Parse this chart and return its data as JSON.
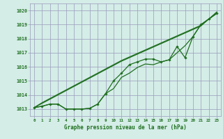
{
  "x": [
    0,
    1,
    2,
    3,
    4,
    5,
    6,
    7,
    8,
    9,
    10,
    11,
    12,
    13,
    14,
    15,
    16,
    17,
    18,
    19,
    20,
    21,
    22,
    23
  ],
  "line_straight": [
    1013.1,
    1013.4,
    1013.7,
    1014.0,
    1014.3,
    1014.6,
    1014.9,
    1015.2,
    1015.5,
    1015.8,
    1016.1,
    1016.4,
    1016.65,
    1016.9,
    1017.15,
    1017.4,
    1017.65,
    1017.9,
    1018.15,
    1018.4,
    1018.65,
    1018.9,
    1019.4,
    1019.8
  ],
  "line_straight2": [
    1013.1,
    1013.45,
    1013.75,
    1014.05,
    1014.35,
    1014.65,
    1014.95,
    1015.25,
    1015.55,
    1015.85,
    1016.15,
    1016.45,
    1016.7,
    1016.95,
    1017.2,
    1017.45,
    1017.7,
    1017.95,
    1018.2,
    1018.45,
    1018.7,
    1018.95,
    1019.4,
    1019.9
  ],
  "line_markers": [
    1013.1,
    1013.2,
    1013.35,
    1013.35,
    1013.0,
    1013.0,
    1013.0,
    1013.05,
    1013.35,
    1014.1,
    1015.0,
    1015.55,
    1016.15,
    1016.35,
    1016.55,
    1016.55,
    1016.35,
    1016.5,
    1017.45,
    1016.65,
    1018.15,
    1019.0,
    1019.4,
    1019.8
  ],
  "line_valley": [
    1013.1,
    1013.2,
    1013.35,
    1013.35,
    1013.0,
    1013.0,
    1013.0,
    1013.05,
    1013.35,
    1014.1,
    1014.45,
    1015.25,
    1015.55,
    1015.95,
    1016.2,
    1016.15,
    1016.35,
    1016.5,
    1017.0,
    1017.5,
    1018.15,
    1019.0,
    1019.4,
    1019.8
  ],
  "bg_color": "#d4ede7",
  "line_color": "#1e6e1e",
  "grid_color": "#9999bb",
  "text_color": "#1e6e1e",
  "ylim": [
    1012.5,
    1020.5
  ],
  "xlim": [
    -0.5,
    23.5
  ],
  "xlabel": "Graphe pression niveau de la mer (hPa)",
  "marker": "D",
  "markersize": 1.8,
  "linewidth": 0.9
}
